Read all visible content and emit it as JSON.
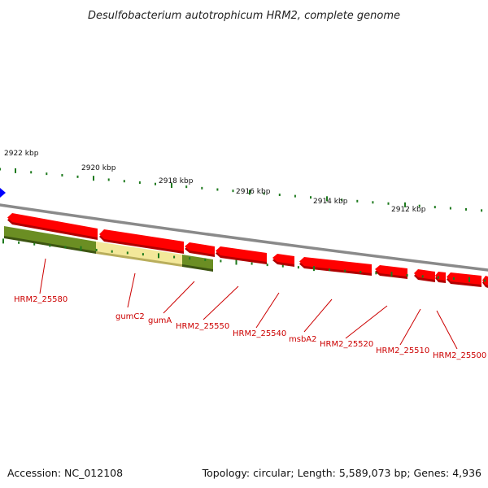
{
  "title": "Desulfobacterium autotrophicum HRM2, complete genome",
  "footer": {
    "accession": "Accession: NC_012108",
    "summary": "Topology: circular; Length: 5,589,073 bp; Genes: 4,936"
  },
  "colors": {
    "backbone": "#8a8a8a",
    "gene_red": "#ff0000",
    "gene_red_shadow": "#b00000",
    "gene_green": "#6b8e23",
    "gene_green_shadow": "#3d5512",
    "gene_highlight": "#f3e89a",
    "label_red": "#cc0000",
    "tick_green": "#1e7a1e",
    "marker_blue": "#0000ff"
  },
  "kbp_ticks": [
    {
      "label": "2922 kbp"
    },
    {
      "label": "2920 kbp"
    },
    {
      "label": "2918 kbp"
    },
    {
      "label": "2916 kbp"
    },
    {
      "label": "2914 kbp"
    },
    {
      "label": "2912 kbp"
    }
  ],
  "gene_labels": [
    {
      "name": "HRM2_25580"
    },
    {
      "name": "gumC2"
    },
    {
      "name": "gumA"
    },
    {
      "name": "HRM2_25550"
    },
    {
      "name": "HRM2_25540"
    },
    {
      "name": "msbA2"
    },
    {
      "name": "HRM2_25520"
    },
    {
      "name": "HRM2_25510"
    },
    {
      "name": "HRM2_25500"
    }
  ]
}
